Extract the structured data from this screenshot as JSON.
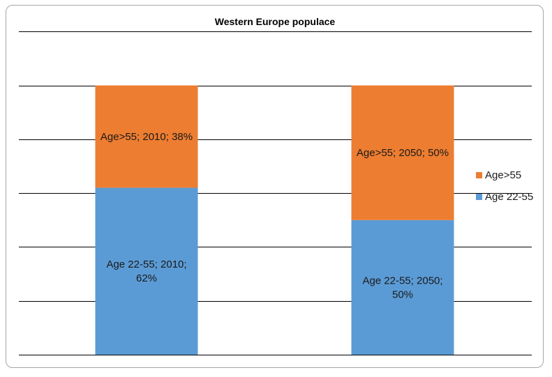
{
  "chart_data": {
    "type": "bar",
    "stacked": true,
    "title": "Western Europe populace",
    "categories": [
      "",
      ""
    ],
    "xlabel": "",
    "ylabel": "",
    "ylim": [
      0,
      1.25
    ],
    "grid": true,
    "legend_position": "right",
    "series": [
      {
        "name": "Age 22-55",
        "color": "#5b9bd5",
        "values": [
          0.62,
          0.5
        ],
        "labels": [
          [
            "Age 22-55; 2010;",
            "62%"
          ],
          [
            "Age 22-55; 2050;",
            "50%"
          ]
        ]
      },
      {
        "name": "Age>55",
        "color": "#ed7d31",
        "values": [
          0.38,
          0.5
        ],
        "labels": [
          [
            "Age>55; 2010; 38%"
          ],
          [
            "Age>55; 2050; 50%"
          ]
        ]
      }
    ],
    "legend": [
      "Age>55",
      "Age 22-55"
    ]
  }
}
